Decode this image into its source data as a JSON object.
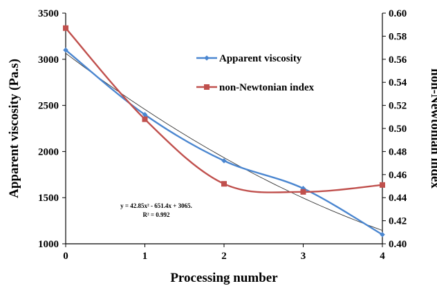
{
  "chart_data": {
    "type": "line",
    "xlabel": "Processing number",
    "ylabel_left": "Apparent viscosity (Pa.s)",
    "ylabel_right": "non-Newtonian index",
    "x_ticks": [
      "0",
      "1",
      "2",
      "3",
      "4"
    ],
    "y_left_ticks": [
      "1000",
      "1500",
      "2000",
      "2500",
      "3000",
      "3500"
    ],
    "y_right_ticks": [
      "0.40",
      "0.42",
      "0.44",
      "0.46",
      "0.48",
      "0.50",
      "0.52",
      "0.54",
      "0.56",
      "0.58",
      "0.60"
    ],
    "xlim": [
      0,
      4
    ],
    "ylim_left": [
      1000,
      3500
    ],
    "ylim_right": [
      0.4,
      0.6
    ],
    "grid": false,
    "legend_position": "top-right",
    "series": [
      {
        "name": "Apparent viscosity",
        "axis": "left",
        "marker": "diamond",
        "color": "#4a86d0",
        "x": [
          0,
          1,
          2,
          3,
          4
        ],
        "values": [
          3100,
          2400,
          1900,
          1600,
          1100
        ]
      },
      {
        "name": "non-Newtonian index",
        "axis": "right",
        "marker": "square",
        "color": "#c0504d",
        "x": [
          0,
          1,
          2,
          3,
          4
        ],
        "values": [
          0.587,
          0.508,
          0.452,
          0.445,
          0.451
        ]
      }
    ],
    "trendline": {
      "color": "#333333",
      "axis": "left",
      "equation": "y = 42.85x² - 651.4x + 3065.",
      "r_squared": "R² = 0.992",
      "coefficients": [
        42.85,
        -651.4,
        3065
      ]
    }
  }
}
